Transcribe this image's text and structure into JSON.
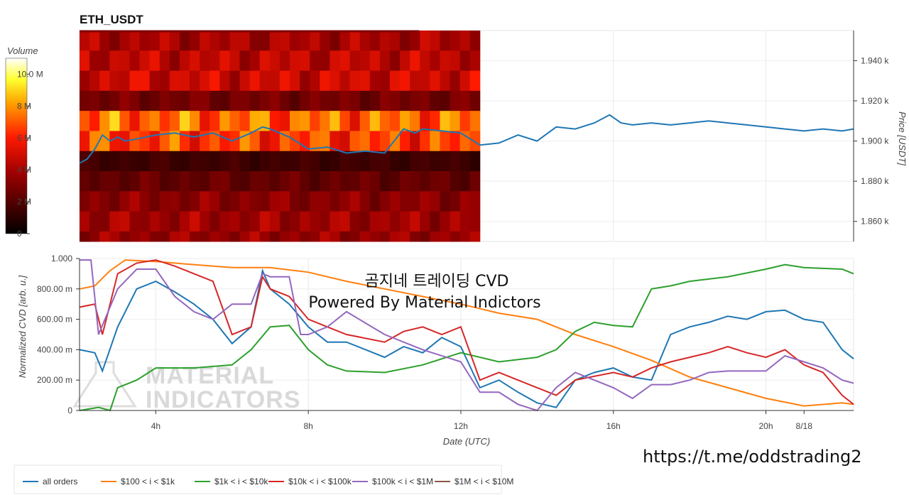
{
  "title": "ETH_USDT",
  "watermark": {
    "line1": "곰지네 트레이딩 CVD",
    "line2": "Powered By Material Indictors",
    "logo_line1": "MATERIAL",
    "logo_line2": "INDICATORS",
    "link": "https://t.me/oddstrading2"
  },
  "chart_data": [
    {
      "type": "heatmap",
      "title": "ETH_USDT",
      "colorbar": {
        "label": "Volume",
        "ticks": [
          "10.0 M",
          "8 M",
          "6 M",
          "4 M",
          "2 M",
          "0"
        ],
        "range": [
          0,
          11000000
        ]
      },
      "ylabel": "Price [USDT]",
      "yticks": [
        "1.940 k",
        "1.920 k",
        "1.900 k",
        "1.880 k",
        "1.860 k"
      ],
      "ylim": [
        1850,
        1955
      ],
      "x_hours_range": [
        2,
        22.3
      ],
      "heatmap_end_hour": 12.5,
      "bands": [
        {
          "price": [
            1945,
            1955
          ],
          "volume": 4000000
        },
        {
          "price": [
            1935,
            1945
          ],
          "volume": 4500000
        },
        {
          "price": [
            1925,
            1935
          ],
          "volume": 4800000
        },
        {
          "price": [
            1915,
            1925
          ],
          "volume": 2800000
        },
        {
          "price": [
            1905,
            1915
          ],
          "volume": 7200000
        },
        {
          "price": [
            1895,
            1905
          ],
          "volume": 6500000
        },
        {
          "price": [
            1885,
            1895
          ],
          "volume": 1500000
        },
        {
          "price": [
            1875,
            1885
          ],
          "volume": 2400000
        },
        {
          "price": [
            1865,
            1875
          ],
          "volume": 3300000
        },
        {
          "price": [
            1855,
            1865
          ],
          "volume": 3800000
        },
        {
          "price": [
            1850,
            1855
          ],
          "volume": 3600000
        }
      ],
      "series": [
        {
          "type": "line",
          "color": "#1f77b4",
          "x": [
            2.0,
            2.2,
            2.4,
            2.6,
            2.8,
            3.0,
            3.2,
            3.5,
            4.0,
            4.5,
            5.0,
            5.5,
            6.0,
            6.5,
            6.8,
            7.0,
            7.5,
            8.0,
            8.5,
            9.0,
            9.5,
            10.0,
            10.5,
            10.8,
            11.0,
            11.5,
            12.0,
            12.5,
            13.0,
            13.5,
            14.0,
            14.5,
            15.0,
            15.5,
            15.9,
            16.2,
            16.5,
            17.0,
            17.5,
            18.0,
            18.5,
            19.0,
            19.5,
            20.0,
            20.5,
            21.0,
            21.5,
            22.0,
            22.3
          ],
          "y": [
            1889,
            1891,
            1896,
            1903,
            1900,
            1902,
            1900,
            1901,
            1903,
            1904,
            1902,
            1904,
            1900,
            1904,
            1907,
            1906,
            1902,
            1896,
            1897,
            1894,
            1895,
            1894,
            1906,
            1904,
            1906,
            1905,
            1904,
            1898,
            1899,
            1903,
            1900,
            1907,
            1906,
            1909,
            1913,
            1909,
            1908,
            1909,
            1908,
            1909,
            1910,
            1909,
            1908,
            1907,
            1906,
            1905,
            1906,
            1905,
            1906
          ]
        }
      ]
    },
    {
      "type": "line",
      "xlabel": "Date (UTC)",
      "ylabel": "Normalized CVD [arb. u.]",
      "ylim": [
        0,
        1
      ],
      "yticks": [
        "0",
        "200.00 m",
        "400.00 m",
        "600.00 m",
        "800.00 m",
        "1.000"
      ],
      "x_hours_range": [
        2,
        22.3
      ],
      "xticks": [
        {
          "h": 4,
          "label": "4h"
        },
        {
          "h": 8,
          "label": "8h"
        },
        {
          "h": 12,
          "label": "12h"
        },
        {
          "h": 16,
          "label": "16h"
        },
        {
          "h": 20,
          "label": "20h"
        },
        {
          "h": 24,
          "label": "8/18"
        }
      ],
      "series": [
        {
          "name": "all orders",
          "color": "#1f77b4",
          "x": [
            2.0,
            2.4,
            2.6,
            3.0,
            3.5,
            4.0,
            4.5,
            5.0,
            5.5,
            6.0,
            6.5,
            6.8,
            7.0,
            7.5,
            8.0,
            8.5,
            9.0,
            10.0,
            10.5,
            11.0,
            11.5,
            12.0,
            12.5,
            13.0,
            13.5,
            14.0,
            14.5,
            15.0,
            15.5,
            16.0,
            16.5,
            17.0,
            17.5,
            18.0,
            18.5,
            19.0,
            19.5,
            20.0,
            20.5,
            21.0,
            21.5,
            22.0,
            22.3
          ],
          "y": [
            0.4,
            0.38,
            0.26,
            0.55,
            0.8,
            0.85,
            0.78,
            0.7,
            0.6,
            0.44,
            0.55,
            0.92,
            0.8,
            0.7,
            0.55,
            0.45,
            0.45,
            0.35,
            0.42,
            0.38,
            0.48,
            0.42,
            0.15,
            0.2,
            0.12,
            0.05,
            0.02,
            0.2,
            0.25,
            0.28,
            0.22,
            0.2,
            0.5,
            0.55,
            0.58,
            0.62,
            0.6,
            0.65,
            0.66,
            0.6,
            0.58,
            0.4,
            0.34
          ]
        },
        {
          "name": "$100 < i < $1k",
          "color": "#ff7f0e",
          "x": [
            2.0,
            2.4,
            2.8,
            3.2,
            4.0,
            5.0,
            6.0,
            7.0,
            8.0,
            9.0,
            10.0,
            11.0,
            12.0,
            13.0,
            14.0,
            15.0,
            16.0,
            17.0,
            18.0,
            19.0,
            20.0,
            21.0,
            22.0,
            22.3
          ],
          "y": [
            0.8,
            0.82,
            0.92,
            0.99,
            0.98,
            0.96,
            0.94,
            0.94,
            0.91,
            0.85,
            0.8,
            0.75,
            0.7,
            0.64,
            0.6,
            0.5,
            0.42,
            0.33,
            0.22,
            0.15,
            0.08,
            0.03,
            0.05,
            0.04
          ]
        },
        {
          "name": "$1k < i < $10k",
          "color": "#2ca02c",
          "x": [
            2.0,
            2.5,
            2.8,
            3.0,
            3.5,
            4.0,
            5.0,
            6.0,
            6.5,
            7.0,
            7.5,
            8.0,
            8.5,
            9.0,
            10.0,
            11.0,
            12.0,
            13.0,
            14.0,
            14.5,
            15.0,
            15.5,
            16.0,
            16.5,
            17.0,
            17.5,
            18.0,
            19.0,
            20.0,
            20.5,
            21.0,
            22.0,
            22.3
          ],
          "y": [
            0.0,
            0.02,
            0.0,
            0.15,
            0.2,
            0.28,
            0.28,
            0.3,
            0.4,
            0.55,
            0.56,
            0.4,
            0.3,
            0.26,
            0.25,
            0.3,
            0.38,
            0.32,
            0.35,
            0.4,
            0.52,
            0.58,
            0.56,
            0.55,
            0.8,
            0.82,
            0.85,
            0.88,
            0.93,
            0.96,
            0.94,
            0.93,
            0.9
          ]
        },
        {
          "name": "$10k < i < $100k",
          "color": "#d62728",
          "x": [
            2.0,
            2.4,
            2.6,
            3.0,
            3.5,
            4.0,
            4.5,
            5.0,
            5.5,
            6.0,
            6.5,
            6.8,
            7.0,
            7.5,
            8.0,
            8.5,
            9.0,
            10.0,
            10.5,
            11.0,
            11.5,
            12.0,
            12.5,
            13.0,
            14.0,
            14.5,
            15.0,
            16.0,
            16.5,
            17.0,
            17.5,
            18.0,
            18.5,
            19.0,
            19.5,
            20.0,
            20.5,
            21.0,
            21.5,
            22.0,
            22.3
          ],
          "y": [
            0.68,
            0.7,
            0.5,
            0.9,
            0.97,
            0.99,
            0.95,
            0.9,
            0.85,
            0.5,
            0.55,
            0.88,
            0.8,
            0.75,
            0.6,
            0.55,
            0.5,
            0.45,
            0.52,
            0.55,
            0.5,
            0.55,
            0.2,
            0.25,
            0.15,
            0.1,
            0.2,
            0.25,
            0.22,
            0.28,
            0.32,
            0.35,
            0.38,
            0.42,
            0.38,
            0.35,
            0.4,
            0.3,
            0.25,
            0.1,
            0.04
          ]
        },
        {
          "name": "$100k < i < $1M",
          "color": "#9467bd",
          "x": [
            2.0,
            2.3,
            2.5,
            3.0,
            3.5,
            4.0,
            4.5,
            5.0,
            5.5,
            6.0,
            6.5,
            6.8,
            7.0,
            7.5,
            7.8,
            8.0,
            8.5,
            9.0,
            10.0,
            11.0,
            12.0,
            12.5,
            13.0,
            13.5,
            14.0,
            14.5,
            15.0,
            15.5,
            16.0,
            16.5,
            17.0,
            17.5,
            18.0,
            18.5,
            19.0,
            20.0,
            20.5,
            21.0,
            21.5,
            22.0,
            22.3
          ],
          "y": [
            0.99,
            0.99,
            0.5,
            0.8,
            0.93,
            0.93,
            0.75,
            0.65,
            0.6,
            0.7,
            0.7,
            0.9,
            0.88,
            0.88,
            0.5,
            0.5,
            0.55,
            0.65,
            0.5,
            0.4,
            0.32,
            0.12,
            0.12,
            0.04,
            0.0,
            0.15,
            0.25,
            0.2,
            0.15,
            0.08,
            0.17,
            0.17,
            0.2,
            0.25,
            0.26,
            0.26,
            0.36,
            0.32,
            0.28,
            0.2,
            0.18
          ]
        },
        {
          "name": "$1M < i < $10M",
          "color": "#8c564b",
          "x": [],
          "y": []
        }
      ]
    }
  ]
}
